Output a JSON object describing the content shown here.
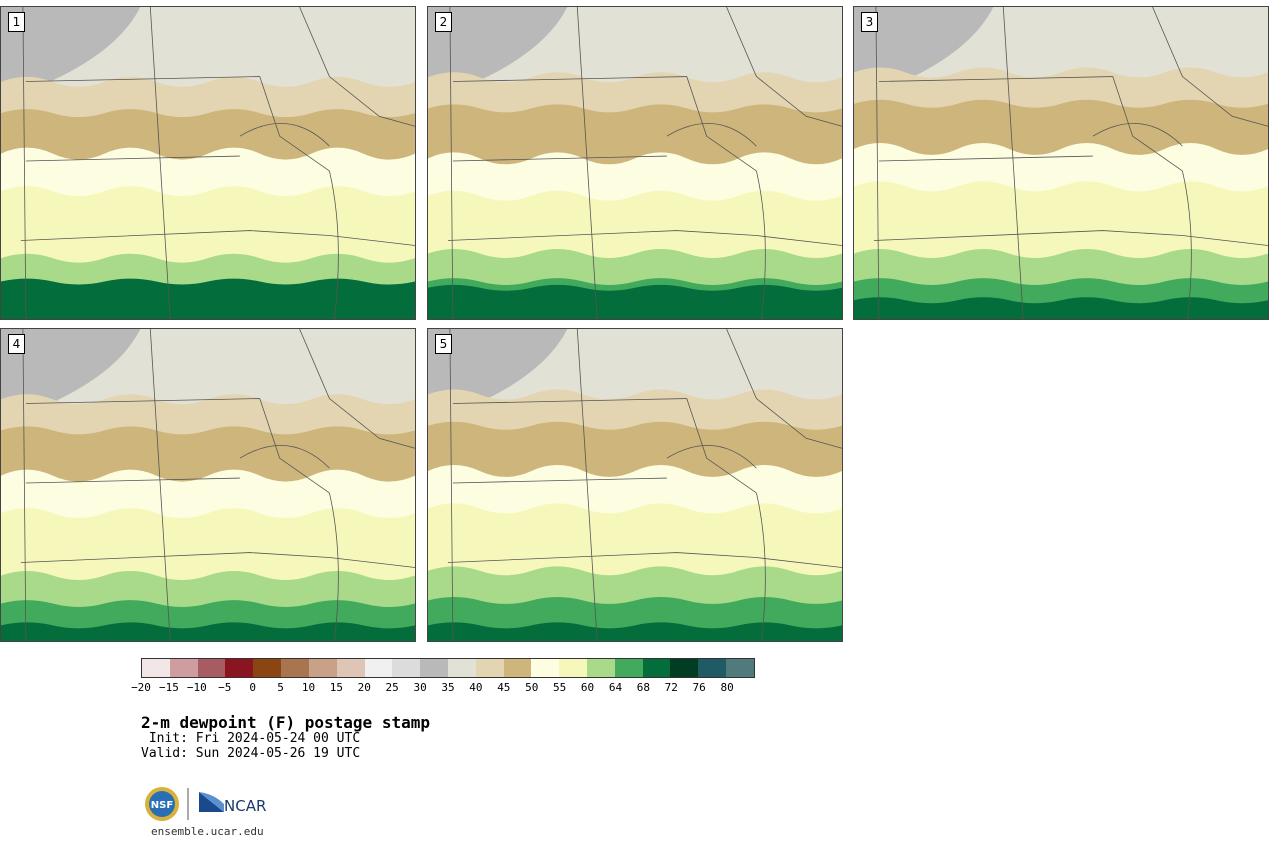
{
  "panels": [
    {
      "label": "1",
      "fill": [
        0.3,
        0.3,
        0.35,
        0.12
      ]
    },
    {
      "label": "2",
      "fill": [
        0.25,
        0.35,
        0.3,
        0.1
      ]
    },
    {
      "label": "3",
      "fill": [
        0.2,
        0.25,
        0.3,
        0.06
      ]
    },
    {
      "label": "4",
      "fill": [
        0.25,
        0.3,
        0.3,
        0.05
      ]
    },
    {
      "label": "5",
      "fill": [
        0.2,
        0.25,
        0.25,
        0.05
      ]
    }
  ],
  "legend": {
    "colors": [
      "#f3e6e6",
      "#cf9da0",
      "#a85c62",
      "#8a1520",
      "#8b4513",
      "#a97550",
      "#c9a088",
      "#dfc5b5",
      "#f0f0f0",
      "#dcdcdc",
      "#b9b9b9",
      "#e1e1d6",
      "#e4d5b2",
      "#cdb57c",
      "#fdfde2",
      "#f6f8bb",
      "#a8da8a",
      "#41aa5c",
      "#036d3c",
      "#003d22",
      "#205b65",
      "#517a7c"
    ],
    "ticks": [
      "−20",
      "−15",
      "−10",
      "−5",
      "0",
      "5",
      "10",
      "15",
      "20",
      "25",
      "30",
      "35",
      "40",
      "45",
      "50",
      "55",
      "60",
      "64",
      "68",
      "72",
      "76",
      "80"
    ]
  },
  "title": "2-m dewpoint (F) postage stamp",
  "init": " Init: Fri 2024-05-24 00 UTC",
  "valid": "Valid: Sun 2024-05-26 19 UTC",
  "logo": {
    "nsf": "NSF",
    "ncar": "NCAR"
  },
  "url": "ensemble.ucar.edu"
}
